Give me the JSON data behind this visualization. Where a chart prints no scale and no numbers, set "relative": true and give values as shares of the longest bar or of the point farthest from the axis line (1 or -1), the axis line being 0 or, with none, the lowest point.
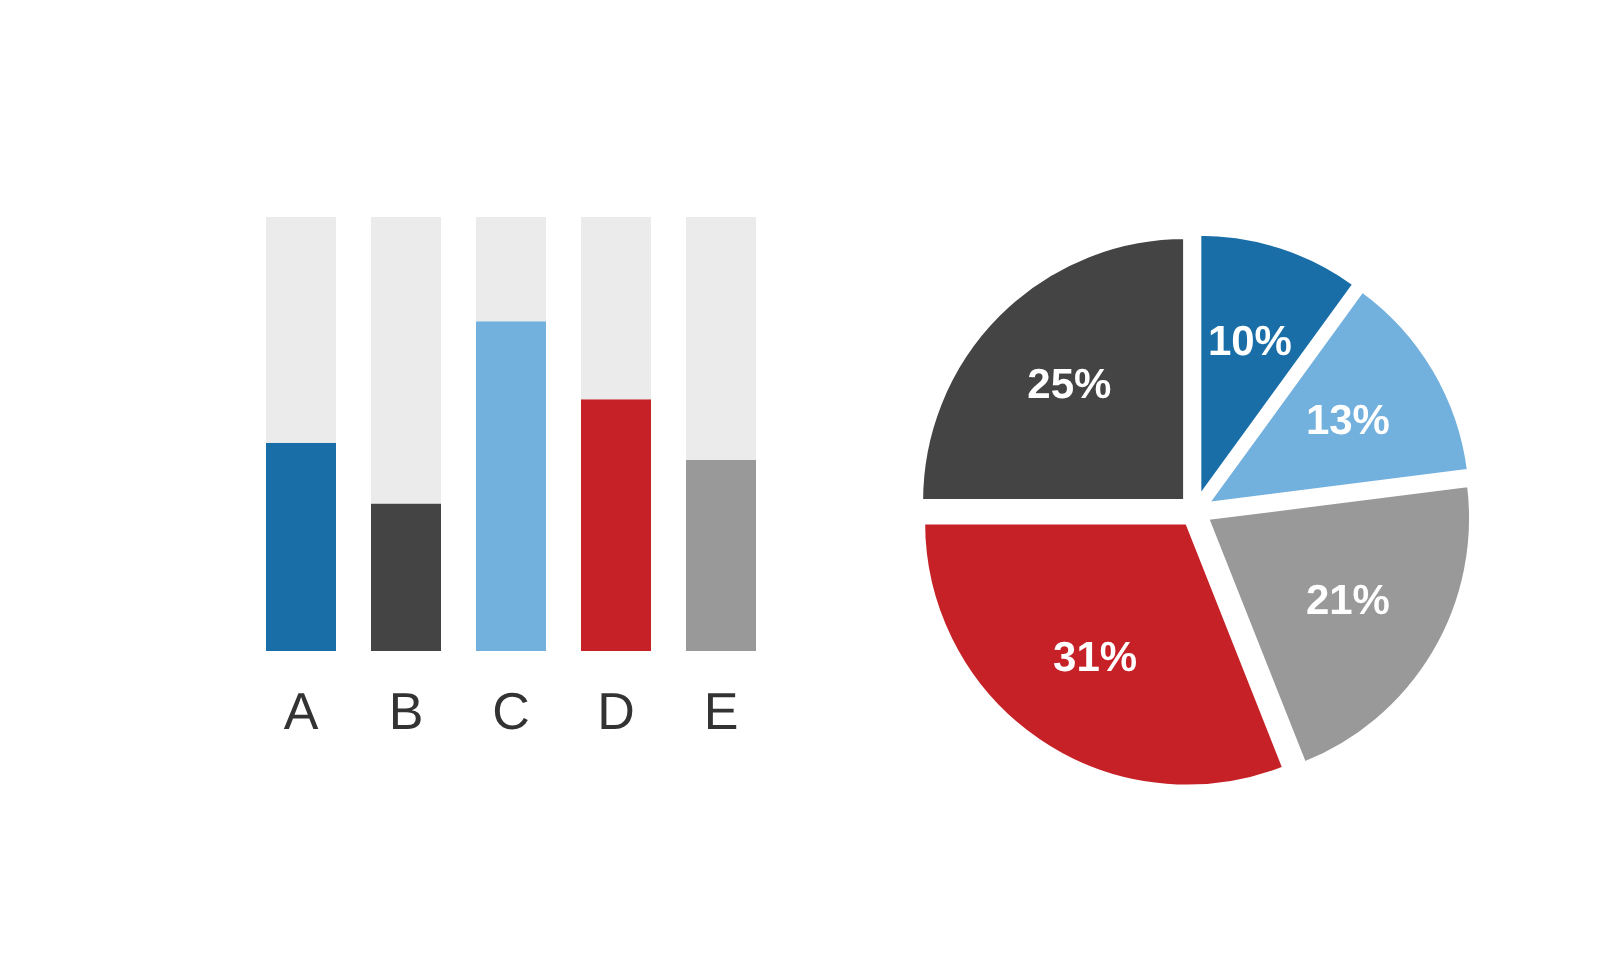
{
  "chart_data": [
    {
      "type": "bar",
      "relative": true,
      "stacked": true,
      "categories": [
        "A",
        "B",
        "C",
        "D",
        "E"
      ],
      "series": [
        {
          "colors": [
            "#1a6ea8",
            "#444444",
            "#72b0de",
            "#c62127",
            "#999999"
          ],
          "values": [
            0.48,
            0.34,
            0.76,
            0.58,
            0.44
          ]
        },
        {
          "color": "#ebebeb",
          "values": [
            0.52,
            0.66,
            0.24,
            0.42,
            0.56
          ]
        }
      ]
    },
    {
      "type": "pie",
      "categories": [
        null,
        null,
        null,
        null,
        null
      ],
      "values": [
        10,
        13,
        21,
        31,
        25
      ],
      "colors": [
        "#1a6ea8",
        "#72b0de",
        "#999999",
        "#c62127",
        "#444444"
      ],
      "value_labels": [
        "10%",
        "13%",
        "21%",
        "31%",
        "25%"
      ]
    }
  ]
}
